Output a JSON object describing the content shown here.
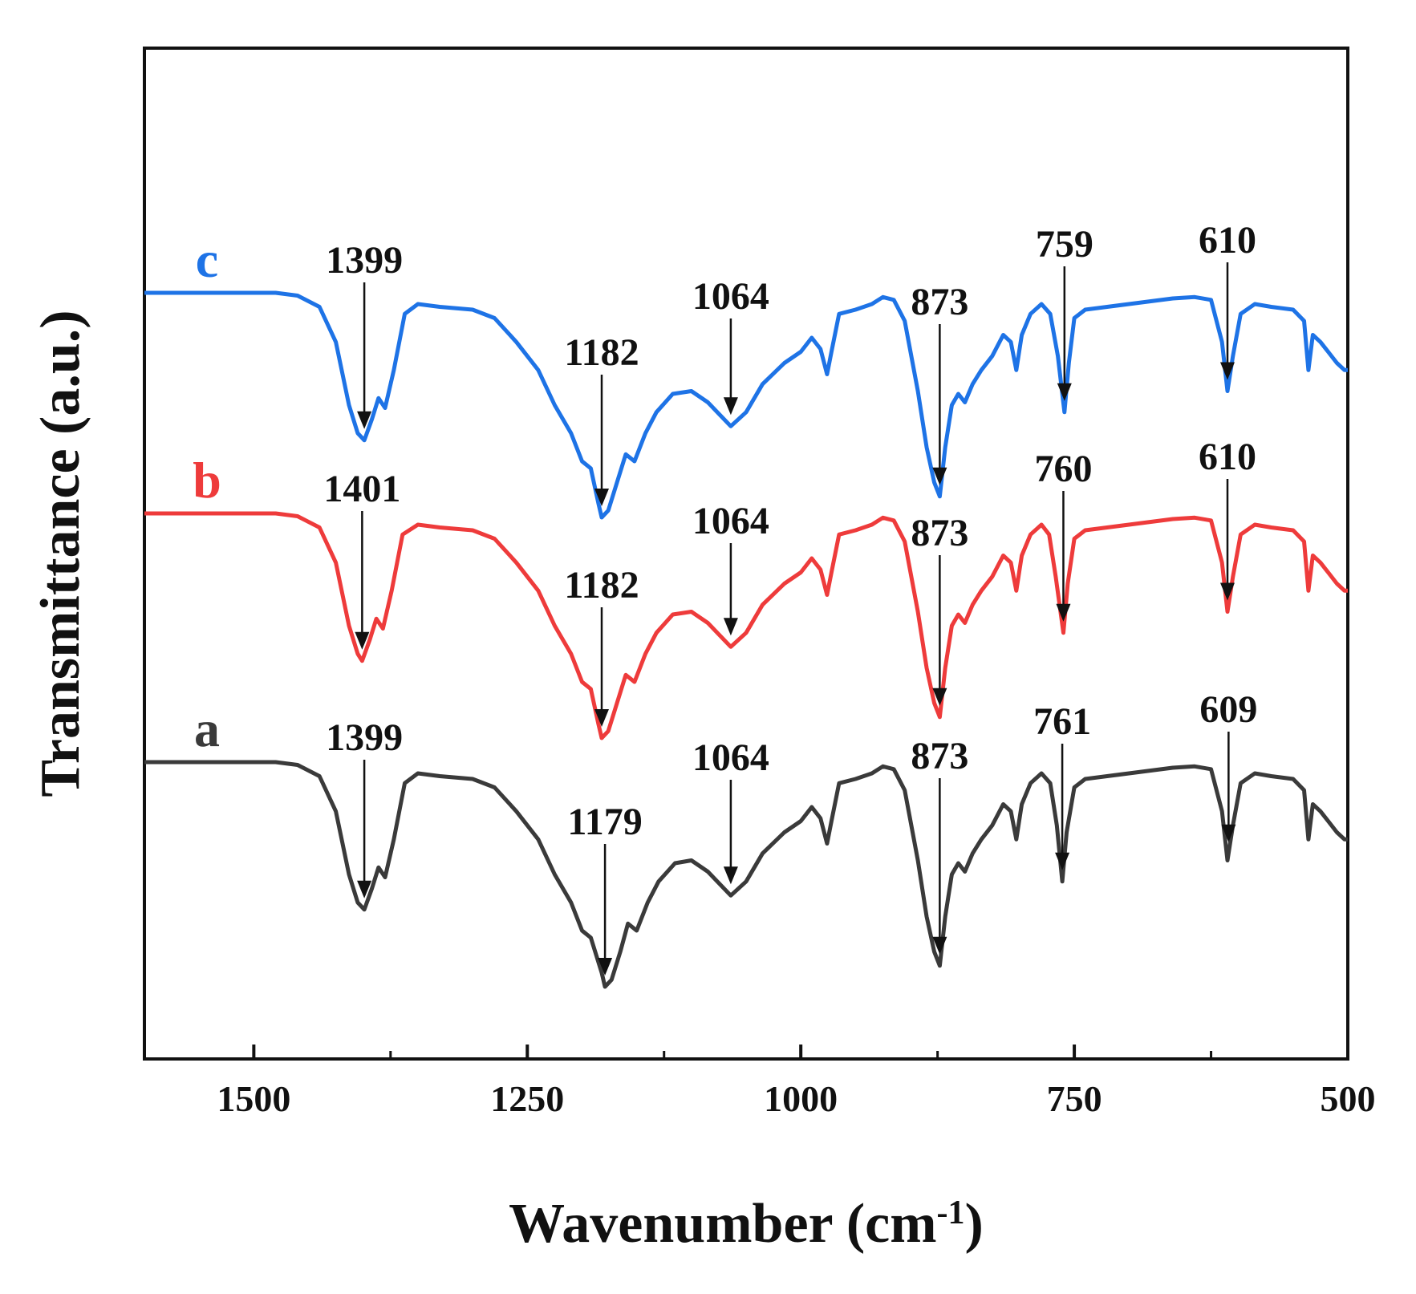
{
  "chart_data": {
    "type": "line",
    "xlabel": "Wavenumber (cm",
    "xlabel_superscript": "-1",
    "xlabel_close": ")",
    "ylabel": "Transmittance (a.u.)",
    "xlim": [
      1600,
      500
    ],
    "x_reversed": true,
    "x_ticks": [
      1500,
      1250,
      1000,
      750,
      500
    ],
    "x_tick_labels": [
      "1500",
      "1250",
      "1000",
      "750",
      "500"
    ],
    "y_tick_labels": false,
    "grid": false,
    "legend": "inline labels at left of each trace",
    "series": [
      {
        "name": "a",
        "color": "#3a3a3a",
        "points": [
          [
            1600,
            0.0
          ],
          [
            1480,
            0.0
          ],
          [
            1460,
            -0.02
          ],
          [
            1440,
            -0.1
          ],
          [
            1425,
            -0.35
          ],
          [
            1413,
            -0.8
          ],
          [
            1405,
            -1.0
          ],
          [
            1399,
            -1.05
          ],
          [
            1392,
            -0.9
          ],
          [
            1386,
            -0.75
          ],
          [
            1380,
            -0.82
          ],
          [
            1372,
            -0.55
          ],
          [
            1362,
            -0.15
          ],
          [
            1350,
            -0.08
          ],
          [
            1330,
            -0.1
          ],
          [
            1300,
            -0.12
          ],
          [
            1280,
            -0.18
          ],
          [
            1260,
            -0.35
          ],
          [
            1240,
            -0.55
          ],
          [
            1225,
            -0.8
          ],
          [
            1210,
            -1.0
          ],
          [
            1200,
            -1.2
          ],
          [
            1192,
            -1.25
          ],
          [
            1182,
            -1.5
          ],
          [
            1179,
            -1.6
          ],
          [
            1173,
            -1.55
          ],
          [
            1165,
            -1.35
          ],
          [
            1158,
            -1.15
          ],
          [
            1150,
            -1.2
          ],
          [
            1140,
            -1.0
          ],
          [
            1130,
            -0.85
          ],
          [
            1115,
            -0.72
          ],
          [
            1100,
            -0.7
          ],
          [
            1085,
            -0.78
          ],
          [
            1064,
            -0.95
          ],
          [
            1050,
            -0.85
          ],
          [
            1035,
            -0.65
          ],
          [
            1015,
            -0.5
          ],
          [
            1000,
            -0.42
          ],
          [
            990,
            -0.32
          ],
          [
            982,
            -0.4
          ],
          [
            976,
            -0.58
          ],
          [
            972,
            -0.42
          ],
          [
            965,
            -0.15
          ],
          [
            950,
            -0.12
          ],
          [
            935,
            -0.08
          ],
          [
            925,
            -0.03
          ],
          [
            915,
            -0.05
          ],
          [
            905,
            -0.2
          ],
          [
            893,
            -0.7
          ],
          [
            885,
            -1.1
          ],
          [
            878,
            -1.35
          ],
          [
            873,
            -1.45
          ],
          [
            868,
            -1.1
          ],
          [
            862,
            -0.8
          ],
          [
            856,
            -0.72
          ],
          [
            850,
            -0.78
          ],
          [
            843,
            -0.65
          ],
          [
            835,
            -0.55
          ],
          [
            825,
            -0.45
          ],
          [
            815,
            -0.3
          ],
          [
            808,
            -0.35
          ],
          [
            803,
            -0.55
          ],
          [
            798,
            -0.3
          ],
          [
            790,
            -0.15
          ],
          [
            780,
            -0.08
          ],
          [
            772,
            -0.15
          ],
          [
            766,
            -0.45
          ],
          [
            761,
            -0.85
          ],
          [
            757,
            -0.5
          ],
          [
            750,
            -0.18
          ],
          [
            740,
            -0.12
          ],
          [
            720,
            -0.1
          ],
          [
            700,
            -0.08
          ],
          [
            680,
            -0.06
          ],
          [
            660,
            -0.04
          ],
          [
            640,
            -0.03
          ],
          [
            625,
            -0.05
          ],
          [
            615,
            -0.35
          ],
          [
            610,
            -0.7
          ],
          [
            605,
            -0.45
          ],
          [
            598,
            -0.15
          ],
          [
            585,
            -0.08
          ],
          [
            570,
            -0.1
          ],
          [
            550,
            -0.12
          ],
          [
            540,
            -0.2
          ],
          [
            536,
            -0.55
          ],
          [
            532,
            -0.3
          ],
          [
            525,
            -0.35
          ],
          [
            518,
            -0.42
          ],
          [
            510,
            -0.5
          ],
          [
            503,
            -0.55
          ],
          [
            500,
            -0.55
          ]
        ]
      },
      {
        "name": "b",
        "color": "#ee3b3b",
        "points": [
          [
            1600,
            0.0
          ],
          [
            1480,
            0.0
          ],
          [
            1460,
            -0.02
          ],
          [
            1440,
            -0.1
          ],
          [
            1425,
            -0.35
          ],
          [
            1413,
            -0.8
          ],
          [
            1405,
            -1.0
          ],
          [
            1401,
            -1.05
          ],
          [
            1394,
            -0.9
          ],
          [
            1388,
            -0.75
          ],
          [
            1382,
            -0.82
          ],
          [
            1374,
            -0.55
          ],
          [
            1364,
            -0.15
          ],
          [
            1350,
            -0.08
          ],
          [
            1330,
            -0.1
          ],
          [
            1300,
            -0.12
          ],
          [
            1280,
            -0.18
          ],
          [
            1260,
            -0.35
          ],
          [
            1240,
            -0.55
          ],
          [
            1225,
            -0.8
          ],
          [
            1210,
            -1.0
          ],
          [
            1200,
            -1.2
          ],
          [
            1192,
            -1.25
          ],
          [
            1185,
            -1.5
          ],
          [
            1182,
            -1.6
          ],
          [
            1176,
            -1.55
          ],
          [
            1168,
            -1.35
          ],
          [
            1160,
            -1.15
          ],
          [
            1152,
            -1.2
          ],
          [
            1142,
            -1.0
          ],
          [
            1132,
            -0.85
          ],
          [
            1117,
            -0.72
          ],
          [
            1100,
            -0.7
          ],
          [
            1085,
            -0.78
          ],
          [
            1064,
            -0.95
          ],
          [
            1050,
            -0.85
          ],
          [
            1035,
            -0.65
          ],
          [
            1015,
            -0.5
          ],
          [
            1000,
            -0.42
          ],
          [
            990,
            -0.32
          ],
          [
            982,
            -0.4
          ],
          [
            976,
            -0.58
          ],
          [
            972,
            -0.42
          ],
          [
            965,
            -0.15
          ],
          [
            950,
            -0.12
          ],
          [
            935,
            -0.08
          ],
          [
            925,
            -0.03
          ],
          [
            915,
            -0.05
          ],
          [
            905,
            -0.2
          ],
          [
            893,
            -0.7
          ],
          [
            885,
            -1.1
          ],
          [
            878,
            -1.35
          ],
          [
            873,
            -1.45
          ],
          [
            868,
            -1.1
          ],
          [
            862,
            -0.8
          ],
          [
            856,
            -0.72
          ],
          [
            850,
            -0.78
          ],
          [
            843,
            -0.65
          ],
          [
            835,
            -0.55
          ],
          [
            825,
            -0.45
          ],
          [
            815,
            -0.3
          ],
          [
            808,
            -0.35
          ],
          [
            803,
            -0.55
          ],
          [
            798,
            -0.3
          ],
          [
            790,
            -0.15
          ],
          [
            780,
            -0.08
          ],
          [
            773,
            -0.15
          ],
          [
            767,
            -0.45
          ],
          [
            760,
            -0.85
          ],
          [
            756,
            -0.5
          ],
          [
            750,
            -0.18
          ],
          [
            740,
            -0.12
          ],
          [
            720,
            -0.1
          ],
          [
            700,
            -0.08
          ],
          [
            680,
            -0.06
          ],
          [
            660,
            -0.04
          ],
          [
            640,
            -0.03
          ],
          [
            625,
            -0.05
          ],
          [
            615,
            -0.35
          ],
          [
            610,
            -0.7
          ],
          [
            605,
            -0.45
          ],
          [
            598,
            -0.15
          ],
          [
            585,
            -0.08
          ],
          [
            570,
            -0.1
          ],
          [
            550,
            -0.12
          ],
          [
            540,
            -0.2
          ],
          [
            536,
            -0.55
          ],
          [
            532,
            -0.3
          ],
          [
            525,
            -0.35
          ],
          [
            518,
            -0.42
          ],
          [
            510,
            -0.5
          ],
          [
            503,
            -0.55
          ],
          [
            500,
            -0.55
          ]
        ]
      },
      {
        "name": "c",
        "color": "#1e73e6",
        "points": [
          [
            1600,
            0.0
          ],
          [
            1480,
            0.0
          ],
          [
            1460,
            -0.02
          ],
          [
            1440,
            -0.1
          ],
          [
            1425,
            -0.35
          ],
          [
            1413,
            -0.8
          ],
          [
            1405,
            -1.0
          ],
          [
            1399,
            -1.05
          ],
          [
            1392,
            -0.9
          ],
          [
            1386,
            -0.75
          ],
          [
            1380,
            -0.82
          ],
          [
            1372,
            -0.55
          ],
          [
            1362,
            -0.15
          ],
          [
            1350,
            -0.08
          ],
          [
            1330,
            -0.1
          ],
          [
            1300,
            -0.12
          ],
          [
            1280,
            -0.18
          ],
          [
            1260,
            -0.35
          ],
          [
            1240,
            -0.55
          ],
          [
            1225,
            -0.8
          ],
          [
            1210,
            -1.0
          ],
          [
            1200,
            -1.2
          ],
          [
            1192,
            -1.25
          ],
          [
            1185,
            -1.5
          ],
          [
            1182,
            -1.6
          ],
          [
            1176,
            -1.55
          ],
          [
            1168,
            -1.35
          ],
          [
            1160,
            -1.15
          ],
          [
            1152,
            -1.2
          ],
          [
            1142,
            -1.0
          ],
          [
            1132,
            -0.85
          ],
          [
            1117,
            -0.72
          ],
          [
            1100,
            -0.7
          ],
          [
            1085,
            -0.78
          ],
          [
            1064,
            -0.95
          ],
          [
            1050,
            -0.85
          ],
          [
            1035,
            -0.65
          ],
          [
            1015,
            -0.5
          ],
          [
            1000,
            -0.42
          ],
          [
            990,
            -0.32
          ],
          [
            982,
            -0.4
          ],
          [
            976,
            -0.58
          ],
          [
            972,
            -0.42
          ],
          [
            965,
            -0.15
          ],
          [
            950,
            -0.12
          ],
          [
            935,
            -0.08
          ],
          [
            925,
            -0.03
          ],
          [
            915,
            -0.05
          ],
          [
            905,
            -0.2
          ],
          [
            893,
            -0.7
          ],
          [
            885,
            -1.1
          ],
          [
            878,
            -1.35
          ],
          [
            873,
            -1.45
          ],
          [
            868,
            -1.1
          ],
          [
            862,
            -0.8
          ],
          [
            856,
            -0.72
          ],
          [
            850,
            -0.78
          ],
          [
            843,
            -0.65
          ],
          [
            835,
            -0.55
          ],
          [
            825,
            -0.45
          ],
          [
            815,
            -0.3
          ],
          [
            808,
            -0.35
          ],
          [
            803,
            -0.55
          ],
          [
            798,
            -0.3
          ],
          [
            790,
            -0.15
          ],
          [
            780,
            -0.08
          ],
          [
            772,
            -0.15
          ],
          [
            765,
            -0.45
          ],
          [
            759,
            -0.85
          ],
          [
            755,
            -0.5
          ],
          [
            750,
            -0.18
          ],
          [
            740,
            -0.12
          ],
          [
            720,
            -0.1
          ],
          [
            700,
            -0.08
          ],
          [
            680,
            -0.06
          ],
          [
            660,
            -0.04
          ],
          [
            640,
            -0.03
          ],
          [
            625,
            -0.05
          ],
          [
            615,
            -0.35
          ],
          [
            610,
            -0.7
          ],
          [
            605,
            -0.45
          ],
          [
            598,
            -0.15
          ],
          [
            585,
            -0.08
          ],
          [
            570,
            -0.1
          ],
          [
            550,
            -0.12
          ],
          [
            540,
            -0.2
          ],
          [
            536,
            -0.55
          ],
          [
            532,
            -0.3
          ],
          [
            525,
            -0.35
          ],
          [
            518,
            -0.42
          ],
          [
            510,
            -0.5
          ],
          [
            503,
            -0.55
          ],
          [
            500,
            -0.55
          ]
        ]
      }
    ],
    "annotations": [
      {
        "series": "a",
        "peaks": [
          {
            "x": 1399,
            "label": "1399"
          },
          {
            "x": 1179,
            "label": "1179"
          },
          {
            "x": 1064,
            "label": "1064"
          },
          {
            "x": 873,
            "label": "873"
          },
          {
            "x": 761,
            "label": "761"
          },
          {
            "x": 609,
            "label": "609"
          }
        ]
      },
      {
        "series": "b",
        "peaks": [
          {
            "x": 1401,
            "label": "1401"
          },
          {
            "x": 1182,
            "label": "1182"
          },
          {
            "x": 1064,
            "label": "1064"
          },
          {
            "x": 873,
            "label": "873"
          },
          {
            "x": 760,
            "label": "760"
          },
          {
            "x": 610,
            "label": "610"
          }
        ]
      },
      {
        "series": "c",
        "peaks": [
          {
            "x": 1399,
            "label": "1399"
          },
          {
            "x": 1182,
            "label": "1182"
          },
          {
            "x": 1064,
            "label": "1064"
          },
          {
            "x": 873,
            "label": "873"
          },
          {
            "x": 759,
            "label": "759"
          },
          {
            "x": 610,
            "label": "610"
          }
        ]
      }
    ]
  }
}
